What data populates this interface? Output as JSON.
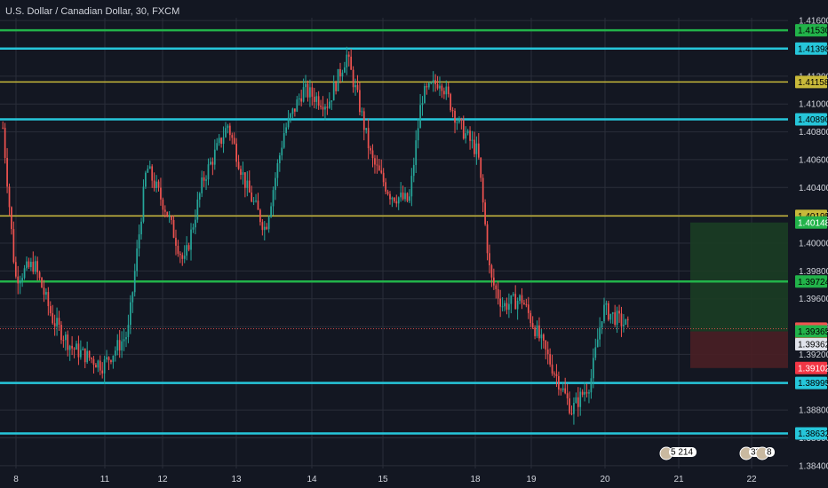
{
  "header": {
    "title": "U.S. Dollar / Canadian Dollar, 30, FXCM"
  },
  "colors": {
    "background": "#131722",
    "grid": "#2a2e39",
    "up": "#26a69a",
    "down": "#ef5350",
    "cyan_line": "#26c6da",
    "yellow_line": "#c8b93a",
    "green_line": "#22b34a",
    "target_zone": "#1b3d24",
    "stop_zone": "#4a1f25"
  },
  "chart_data": {
    "type": "candlestick",
    "ylim": [
      1.3838,
      1.4162
    ],
    "price_ticks": [
      "1.41600",
      "1.41400",
      "1.41200",
      "1.41000",
      "1.40800",
      "1.40600",
      "1.40400",
      "1.40200",
      "1.40000",
      "1.39800",
      "1.39600",
      "1.39400",
      "1.39200",
      "1.39000",
      "1.38800",
      "1.38600",
      "1.38400"
    ],
    "date_labels": [
      "8",
      "11",
      "12",
      "13",
      "14",
      "15",
      "18",
      "19",
      "20",
      "21",
      "22"
    ],
    "horizontal_levels": [
      {
        "price": 1.4153,
        "label": "1.41530",
        "kind": "green"
      },
      {
        "price": 1.41398,
        "label": "1.41398",
        "kind": "cyan"
      },
      {
        "price": 1.41158,
        "label": "1.41158",
        "kind": "yellow"
      },
      {
        "price": 1.4089,
        "label": "1.40890",
        "kind": "cyan"
      },
      {
        "price": 1.40195,
        "label": "1.40195",
        "kind": "yellow"
      },
      {
        "price": 1.39724,
        "label": "1.39724",
        "kind": "green"
      },
      {
        "price": 1.38995,
        "label": "1.38995",
        "kind": "cyan"
      },
      {
        "price": 1.38632,
        "label": "1.38632",
        "kind": "cyan"
      }
    ],
    "position_tags": [
      {
        "price": 1.40148,
        "label": "1.40148",
        "kind": "target"
      },
      {
        "price": 1.39385,
        "label": "1.39385",
        "kind": "last"
      },
      {
        "price": 1.39365,
        "label": "1.39365",
        "kind": "entry"
      },
      {
        "price": 1.39362,
        "label": "1.39362",
        "kind": "neutral"
      },
      {
        "price": 1.39102,
        "label": "1.39102",
        "kind": "stop"
      }
    ],
    "countdown": "13:21",
    "risk_reward": {
      "target": 1.40148,
      "entry": 1.39365,
      "stop": 1.39102
    },
    "price_path": [
      [
        0,
        1.4083
      ],
      [
        0.02,
        1.3975
      ],
      [
        0.05,
        1.3985
      ],
      [
        0.08,
        1.3945
      ],
      [
        0.11,
        1.3925
      ],
      [
        0.16,
        1.3912
      ],
      [
        0.2,
        1.3935
      ],
      [
        0.23,
        1.4055
      ],
      [
        0.26,
        1.4025
      ],
      [
        0.29,
        1.3985
      ],
      [
        0.32,
        1.4045
      ],
      [
        0.36,
        1.4085
      ],
      [
        0.39,
        1.404
      ],
      [
        0.42,
        1.401
      ],
      [
        0.45,
        1.408
      ],
      [
        0.48,
        1.411
      ],
      [
        0.52,
        1.41
      ],
      [
        0.55,
        1.4135
      ],
      [
        0.57,
        1.41
      ],
      [
        0.59,
        1.406
      ],
      [
        0.62,
        1.4035
      ],
      [
        0.65,
        1.403
      ],
      [
        0.67,
        1.4105
      ],
      [
        0.7,
        1.4118
      ],
      [
        0.73,
        1.4085
      ],
      [
        0.76,
        1.4065
      ],
      [
        0.78,
        1.3975
      ],
      [
        0.8,
        1.3955
      ],
      [
        0.83,
        1.396
      ],
      [
        0.86,
        1.393
      ],
      [
        0.89,
        1.39
      ],
      [
        0.91,
        1.388
      ],
      [
        0.94,
        1.39
      ],
      [
        0.96,
        1.3953
      ],
      [
        1.0,
        1.394
      ]
    ],
    "footer_badges": [
      "5 214",
      "33",
      "8"
    ]
  }
}
